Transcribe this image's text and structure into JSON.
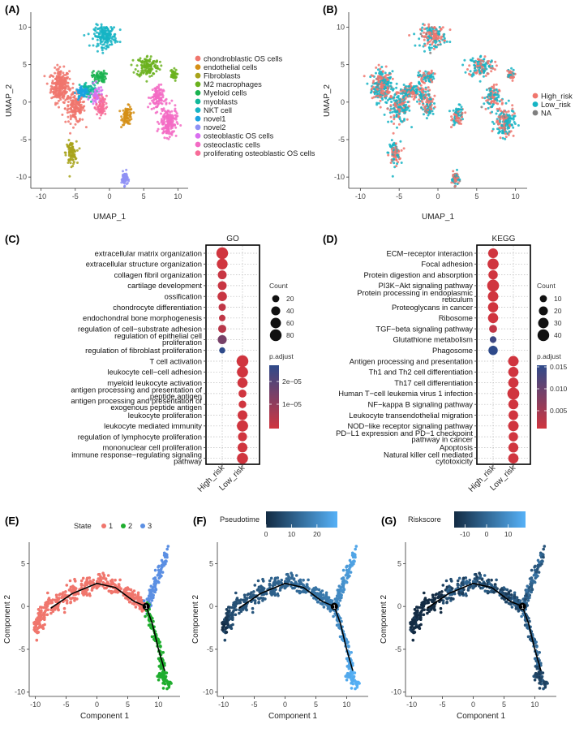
{
  "colors": {
    "chondroblastic": "#F0766D",
    "endothelial": "#D58F16",
    "fibroblasts": "#A8A31B",
    "m2": "#6BB11E",
    "myeloid": "#1AB350",
    "myoblasts": "#11B89A",
    "nkt": "#16B4C4",
    "novel1": "#1AA2E0",
    "novel2": "#8F91F5",
    "osteoblastic": "#D96EF0",
    "osteoclastic": "#F36BC4",
    "proliferating": "#F76C98",
    "high_risk": "#F0766D",
    "low_risk": "#16B4C4",
    "na": "#7F7F7F",
    "state1": "#F0766D",
    "state2": "#1FAD2E",
    "state3": "#5B8FE3",
    "padj_low": "#D0353F",
    "padj_high": "#2E4A8A",
    "pseudo_low": "#132B43",
    "pseudo_high": "#56B1F7"
  },
  "chart_data": [
    {
      "panel": "(A)",
      "type": "scatter",
      "xlabel": "UMAP_1",
      "ylabel": "UMAP_2",
      "xlim": [
        -11.5,
        11.5
      ],
      "ylim": [
        -11.5,
        12
      ],
      "xticks": [
        -10,
        -5,
        0,
        5,
        10
      ],
      "yticks": [
        -10,
        -5,
        0,
        5,
        10
      ],
      "legend": [
        "chondroblastic OS cells",
        "endothelial cells",
        "Fibroblasts",
        "M2 macrophages",
        "Myeloid cells",
        "myoblasts",
        "NKT cell",
        "novel1",
        "novel2",
        "osteoblastic OS cells",
        "osteoclastic cells",
        "proliferating osteoblastic OS cells"
      ],
      "clusters": [
        {
          "name": "chondroblastic OS cells",
          "cx": -7.2,
          "cy": 2.2,
          "sx": 1.2,
          "sy": 2.0,
          "n": 260
        },
        {
          "name": "chondroblastic OS cells",
          "cx": -5.0,
          "cy": -0.8,
          "sx": 1.3,
          "sy": 1.8,
          "n": 160
        },
        {
          "name": "endothelial cells",
          "cx": 2.6,
          "cy": -1.8,
          "sx": 0.7,
          "sy": 1.1,
          "n": 90
        },
        {
          "name": "Fibroblasts",
          "cx": -5.6,
          "cy": -6.8,
          "sx": 0.7,
          "sy": 1.4,
          "n": 90
        },
        {
          "name": "M2 macrophages",
          "cx": 5.6,
          "cy": 4.8,
          "sx": 1.5,
          "sy": 1.3,
          "n": 140
        },
        {
          "name": "M2 macrophages",
          "cx": 9.3,
          "cy": 3.6,
          "sx": 0.5,
          "sy": 0.7,
          "n": 40
        },
        {
          "name": "Myeloid cells",
          "cx": -1.5,
          "cy": 3.4,
          "sx": 0.9,
          "sy": 0.7,
          "n": 70
        },
        {
          "name": "myoblasts",
          "cx": -3.0,
          "cy": 1.5,
          "sx": 1.2,
          "sy": 1.0,
          "n": 80
        },
        {
          "name": "NKT cell",
          "cx": -0.6,
          "cy": 8.8,
          "sx": 1.5,
          "sy": 1.3,
          "n": 170
        },
        {
          "name": "novel1",
          "cx": -4.0,
          "cy": 1.3,
          "sx": 0.8,
          "sy": 0.6,
          "n": 60
        },
        {
          "name": "novel2",
          "cx": 2.2,
          "cy": -10.2,
          "sx": 0.4,
          "sy": 0.8,
          "n": 70
        },
        {
          "name": "osteoblastic OS cells",
          "cx": -1.8,
          "cy": 0.8,
          "sx": 0.9,
          "sy": 1.3,
          "n": 50
        },
        {
          "name": "osteoclastic cells",
          "cx": 8.6,
          "cy": -2.7,
          "sx": 1.1,
          "sy": 1.8,
          "n": 170
        },
        {
          "name": "osteoclastic cells",
          "cx": 6.9,
          "cy": 0.6,
          "sx": 0.9,
          "sy": 1.5,
          "n": 100
        },
        {
          "name": "proliferating osteoblastic OS cells",
          "cx": -1.2,
          "cy": -0.6,
          "sx": 0.7,
          "sy": 1.3,
          "n": 70
        }
      ]
    },
    {
      "panel": "(B)",
      "type": "scatter",
      "xlabel": "UMAP_1",
      "ylabel": "UMAP_2",
      "xlim": [
        -11.5,
        11.5
      ],
      "ylim": [
        -11.5,
        12
      ],
      "xticks": [
        -10,
        -5,
        0,
        5,
        10
      ],
      "yticks": [
        -10,
        -5,
        0,
        5,
        10
      ],
      "legend": [
        "High_risk",
        "Low_risk",
        "NA"
      ]
    },
    {
      "panel": "(C)",
      "type": "scatter",
      "title": "GO",
      "xcategories": [
        "High_risk",
        "Low_risk"
      ],
      "size_legend_title": "Count",
      "size_legend": [
        20,
        40,
        60,
        80
      ],
      "color_legend_title": "p.adjust",
      "color_ticks": [
        "2e−05",
        "1e−05"
      ],
      "terms": [
        {
          "label": "extracellular matrix organization",
          "group": "High_risk",
          "count": 80,
          "padj": 0.0
        },
        {
          "label": "extracellular structure organization",
          "group": "High_risk",
          "count": 65,
          "padj": 0.0
        },
        {
          "label": "collagen fibril organization",
          "group": "High_risk",
          "count": 38,
          "padj": 0.05
        },
        {
          "label": "cartilage development",
          "group": "High_risk",
          "count": 38,
          "padj": 0.05
        },
        {
          "label": "ossification",
          "group": "High_risk",
          "count": 45,
          "padj": 0.05
        },
        {
          "label": "chondrocyte differentiation",
          "group": "High_risk",
          "count": 22,
          "padj": 0.1
        },
        {
          "label": "endochondral bone morphogenesis",
          "group": "High_risk",
          "count": 15,
          "padj": 0.1
        },
        {
          "label": "regulation of cell−substrate adhesion",
          "group": "High_risk",
          "count": 30,
          "padj": 0.15
        },
        {
          "label": "regulation of epithelial cell proliferation",
          "group": "High_risk",
          "count": 40,
          "padj": 0.55
        },
        {
          "label": "regulation of fibroblast proliferation",
          "group": "High_risk",
          "count": 12,
          "padj": 1.0
        },
        {
          "label": "T cell activation",
          "group": "Low_risk",
          "count": 80,
          "padj": 0.0
        },
        {
          "label": "leukocyte cell−cell adhesion",
          "group": "Low_risk",
          "count": 70,
          "padj": 0.0
        },
        {
          "label": "myeloid leukocyte activation",
          "group": "Low_risk",
          "count": 55,
          "padj": 0.0
        },
        {
          "label": "antigen processing and presentation of peptide antigen",
          "group": "Low_risk",
          "count": 28,
          "padj": 0.0
        },
        {
          "label": "antigen processing and presentation of exogenous peptide antigen",
          "group": "Low_risk",
          "count": 25,
          "padj": 0.0
        },
        {
          "label": "leukocyte proliferation",
          "group": "Low_risk",
          "count": 50,
          "padj": 0.0
        },
        {
          "label": "leukocyte mediated immunity",
          "group": "Low_risk",
          "count": 72,
          "padj": 0.0
        },
        {
          "label": "regulation of lymphocyte proliferation",
          "group": "Low_risk",
          "count": 40,
          "padj": 0.0
        },
        {
          "label": "mononuclear cell proliferation",
          "group": "Low_risk",
          "count": 50,
          "padj": 0.0
        },
        {
          "label": "immune response−regulating signaling pathway",
          "group": "Low_risk",
          "count": 68,
          "padj": 0.0
        }
      ]
    },
    {
      "panel": "(D)",
      "type": "scatter",
      "title": "KEGG",
      "xcategories": [
        "High_risk",
        "Low_risk"
      ],
      "size_legend_title": "Count",
      "size_legend": [
        10,
        20,
        30,
        40
      ],
      "color_legend_title": "p.adjust",
      "color_ticks": [
        "0.015",
        "0.010",
        "0.005"
      ],
      "terms": [
        {
          "label": "ECM−receptor interaction",
          "group": "High_risk",
          "count": 25,
          "padj": 0.0
        },
        {
          "label": "Focal adhesion",
          "group": "High_risk",
          "count": 35,
          "padj": 0.0
        },
        {
          "label": "Protein digestion and absorption",
          "group": "High_risk",
          "count": 22,
          "padj": 0.0
        },
        {
          "label": "PI3K−Akt signaling pathway",
          "group": "High_risk",
          "count": 42,
          "padj": 0.0
        },
        {
          "label": "Protein processing in endoplasmic reticulum",
          "group": "High_risk",
          "count": 30,
          "padj": 0.0
        },
        {
          "label": "Proteoglycans in cancer",
          "group": "High_risk",
          "count": 28,
          "padj": 0.0
        },
        {
          "label": "Ribosome",
          "group": "High_risk",
          "count": 28,
          "padj": 0.0
        },
        {
          "label": "TGF−beta signaling pathway",
          "group": "High_risk",
          "count": 14,
          "padj": 0.1
        },
        {
          "label": "Glutathione metabolism",
          "group": "High_risk",
          "count": 8,
          "padj": 0.9
        },
        {
          "label": "Phagosome",
          "group": "High_risk",
          "count": 22,
          "padj": 1.0
        },
        {
          "label": "Antigen processing and presentation",
          "group": "Low_risk",
          "count": 30,
          "padj": 0.0
        },
        {
          "label": "Th1 and Th2 cell differentiation",
          "group": "Low_risk",
          "count": 28,
          "padj": 0.0
        },
        {
          "label": "Th17 cell differentiation",
          "group": "Low_risk",
          "count": 28,
          "padj": 0.0
        },
        {
          "label": "Human T−cell leukemia virus 1 infection",
          "group": "Low_risk",
          "count": 42,
          "padj": 0.0
        },
        {
          "label": "NF−kappa B signaling pathway",
          "group": "Low_risk",
          "count": 26,
          "padj": 0.0
        },
        {
          "label": "Leukocyte transendothelial migration",
          "group": "Low_risk",
          "count": 24,
          "padj": 0.0
        },
        {
          "label": "NOD−like receptor signaling pathway",
          "group": "Low_risk",
          "count": 30,
          "padj": 0.0
        },
        {
          "label": "PD−L1 expression and PD−1 checkpoint pathway in cancer",
          "group": "Low_risk",
          "count": 22,
          "padj": 0.0
        },
        {
          "label": "Apoptosis",
          "group": "Low_risk",
          "count": 26,
          "padj": 0.0
        },
        {
          "label": "Natural killer cell mediated cytotoxicity",
          "group": "Low_risk",
          "count": 28,
          "padj": 0.0
        }
      ]
    },
    {
      "panel": "(E)",
      "type": "scatter",
      "xlabel": "Component 1",
      "ylabel": "Component 2",
      "xlim": [
        -11,
        13.5
      ],
      "ylim": [
        -10.5,
        7.5
      ],
      "xticks": [
        -10,
        -5,
        0,
        5,
        10
      ],
      "yticks": [
        -10,
        -5,
        0,
        5
      ],
      "legend_title": "State",
      "legend": [
        "1",
        "2",
        "3"
      ],
      "trajectory": [
        [
          -7.5,
          -0.2
        ],
        [
          -4,
          1.5
        ],
        [
          0,
          2.7
        ],
        [
          3,
          2.2
        ],
        [
          6,
          0.6
        ],
        [
          8,
          0
        ],
        [
          9,
          -2
        ],
        [
          10,
          -5
        ],
        [
          11,
          -7.5
        ]
      ],
      "branch_point": {
        "x": 8,
        "y": 0,
        "label": "1"
      }
    },
    {
      "panel": "(F)",
      "type": "scatter",
      "xlabel": "Component 1",
      "ylabel": "Component 2",
      "xlim": [
        -11,
        13.5
      ],
      "ylim": [
        -10.5,
        7.5
      ],
      "xticks": [
        -10,
        -5,
        0,
        5,
        10
      ],
      "yticks": [
        -10,
        -5,
        0,
        5
      ],
      "legend_title": "Pseudotime",
      "colorbar_ticks": [
        0,
        10,
        20
      ],
      "colorbar_range": [
        0,
        28
      ]
    },
    {
      "panel": "(G)",
      "type": "scatter",
      "xlabel": "Component 1",
      "ylabel": "Component 2",
      "xlim": [
        -11,
        13.5
      ],
      "ylim": [
        -10.5,
        7.5
      ],
      "xticks": [
        -10,
        -5,
        0,
        5,
        10
      ],
      "yticks": [
        -10,
        -5,
        0,
        5
      ],
      "legend_title": "Riskscore",
      "colorbar_ticks": [
        -10,
        0,
        10
      ],
      "colorbar_range": [
        -15,
        18
      ]
    }
  ]
}
